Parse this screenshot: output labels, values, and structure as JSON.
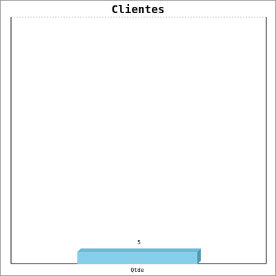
{
  "chart_data": {
    "type": "bar",
    "title": "Clientes",
    "categories": [
      "Qtde"
    ],
    "values": [
      5
    ],
    "data_labels": [
      "5"
    ],
    "ylim": [
      0,
      100
    ],
    "grid": "top-dashed",
    "bar_colors": {
      "front": "#87ceeb",
      "top": "#6fb9d6",
      "side": "#4f97b3"
    },
    "axis_color": "#000000",
    "grid_color": "#bbbbbb"
  }
}
